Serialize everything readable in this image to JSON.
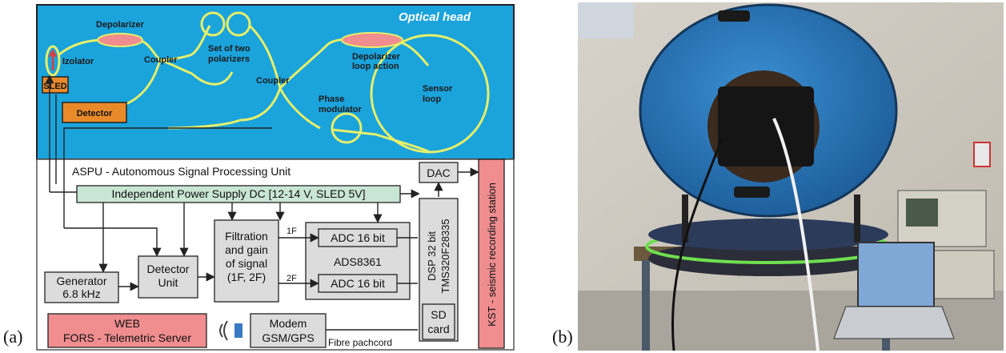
{
  "panel_a": {
    "label": "(a)",
    "optical_head": {
      "title": "Optical head",
      "izolator": "Izolator",
      "depolarizer": "Depolarizer",
      "coupler_1": "Coupler",
      "polarizers_line1": "Set of two",
      "polarizers_line2": "polarizers",
      "coupler_2": "Coupler",
      "depol_loop_line1": "Depolarizer",
      "depol_loop_line2": "loop action",
      "sensor_line1": "Sensor",
      "sensor_line2": "loop",
      "phase_line1": "Phase",
      "phase_line2": "modulator",
      "sled": "SLED",
      "detector": "Detector"
    },
    "aspu": {
      "title": "ASPU - Autonomous Signal Processing Unit",
      "power_supply": "Independent Power Supply DC [12-14 V, SLED 5V]",
      "dac": "DAC",
      "kst": "KST - seismic recording station",
      "generator_line1": "Generator",
      "generator_line2": "6.8 kHz",
      "detector_unit_line1": "Detector",
      "detector_unit_line2": "Unit",
      "filtration_line1": "Filtration",
      "filtration_line2": "and gain",
      "filtration_line3": "of signal",
      "filtration_line4": "(1F, 2F)",
      "tag_1f": "1F",
      "tag_2f": "2F",
      "adc_1": "ADC 16 bit",
      "adc_2": "ADC 16 bit",
      "ads": "ADS8361",
      "dsp_line1": "DSP 32 bit",
      "dsp_line2": "TMS320F28335",
      "sd_line1": "SD",
      "sd_line2": "card",
      "web_line1": "WEB",
      "web_line2": "FORS - Telemetric Server",
      "modem_line1": "Modem",
      "modem_line2": "GSM/GPS",
      "fibre": "Fibre pachcord"
    }
  },
  "panel_b": {
    "label": "(b)"
  },
  "colors": {
    "optical_bg": "#1ba3dc",
    "fiber": "#e6ef6a",
    "sled": "#e98a2a",
    "power": "#c9e6d4",
    "box": "#dcdcdc",
    "pink": "#ef8d8f"
  }
}
